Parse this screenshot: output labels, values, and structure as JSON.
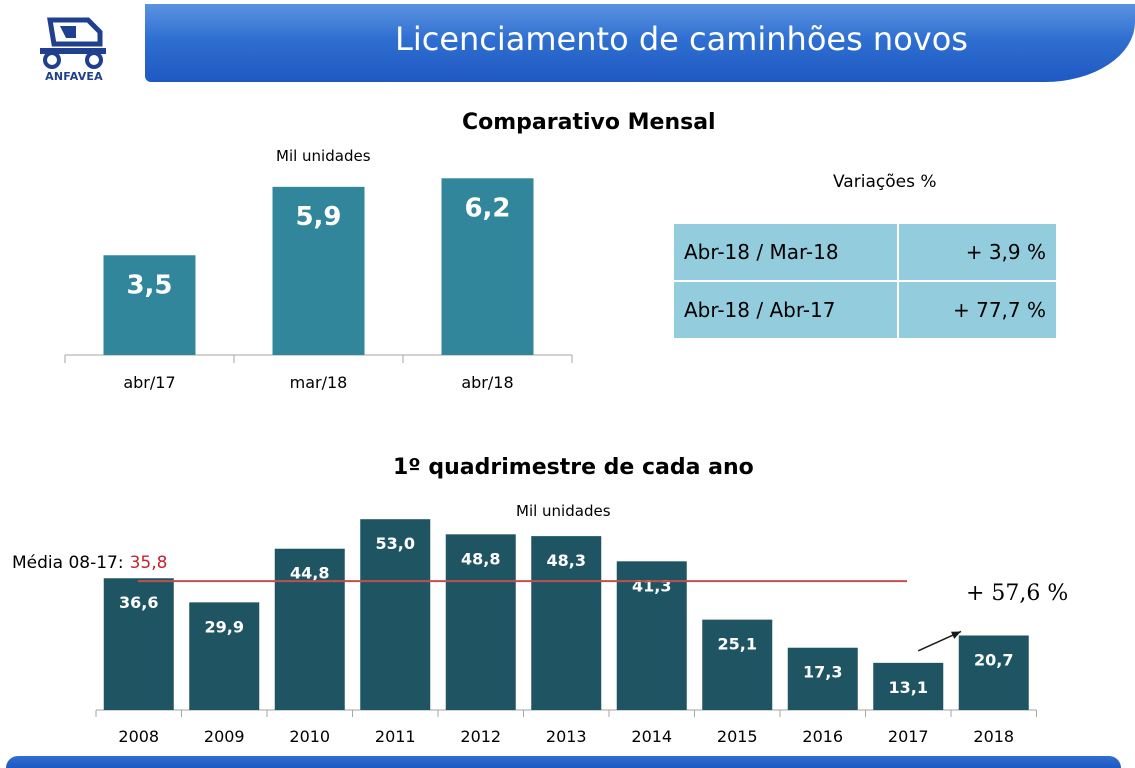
{
  "header": {
    "title": "Licenciamento de caminhões novos",
    "logo_text": "ANFAVEA"
  },
  "monthly": {
    "title": "Comparativo Mensal",
    "unit": "Mil unidades",
    "variations_title": "Variações %",
    "variations": [
      {
        "label": "Abr-18 / Mar-18",
        "value": "+ 3,9 %"
      },
      {
        "label": "Abr-18 / Abr-17",
        "value": "+ 77,7 %"
      }
    ]
  },
  "yearly": {
    "title": "1º quadrimestre de cada ano",
    "unit": "Mil unidades",
    "average_label": "Média 08-17:",
    "average_value": "35,8",
    "growth_label": "+ 57,6 %"
  },
  "colors": {
    "monthly_bar": "#31869b",
    "yearly_bar": "#1f5563",
    "average_line": "#c0504d",
    "table_bg": "#93cddd",
    "banner": "#2f6fd1"
  },
  "chart_data": [
    {
      "type": "bar",
      "title": "Comparativo Mensal",
      "ylabel": "Mil unidades",
      "categories": [
        "abr/17",
        "mar/18",
        "abr/18"
      ],
      "values": [
        3.5,
        5.9,
        6.2
      ],
      "value_labels": [
        "3,5",
        "5,9",
        "6,2"
      ],
      "grid": false
    },
    {
      "type": "bar",
      "title": "1º quadrimestre de cada ano",
      "ylabel": "Mil unidades",
      "categories": [
        "2008",
        "2009",
        "2010",
        "2011",
        "2012",
        "2013",
        "2014",
        "2015",
        "2016",
        "2017",
        "2018"
      ],
      "values": [
        36.6,
        29.9,
        44.8,
        53.0,
        48.8,
        48.3,
        41.3,
        25.1,
        17.3,
        13.1,
        20.7
      ],
      "value_labels": [
        "36,6",
        "29,9",
        "44,8",
        "53,0",
        "48,8",
        "48,3",
        "41,3",
        "25,1",
        "17,3",
        "13,1",
        "20,7"
      ],
      "reference_line": {
        "label": "Média 08-17",
        "value": 35.8
      },
      "annotation": "+ 57,6 %",
      "grid": false
    }
  ]
}
